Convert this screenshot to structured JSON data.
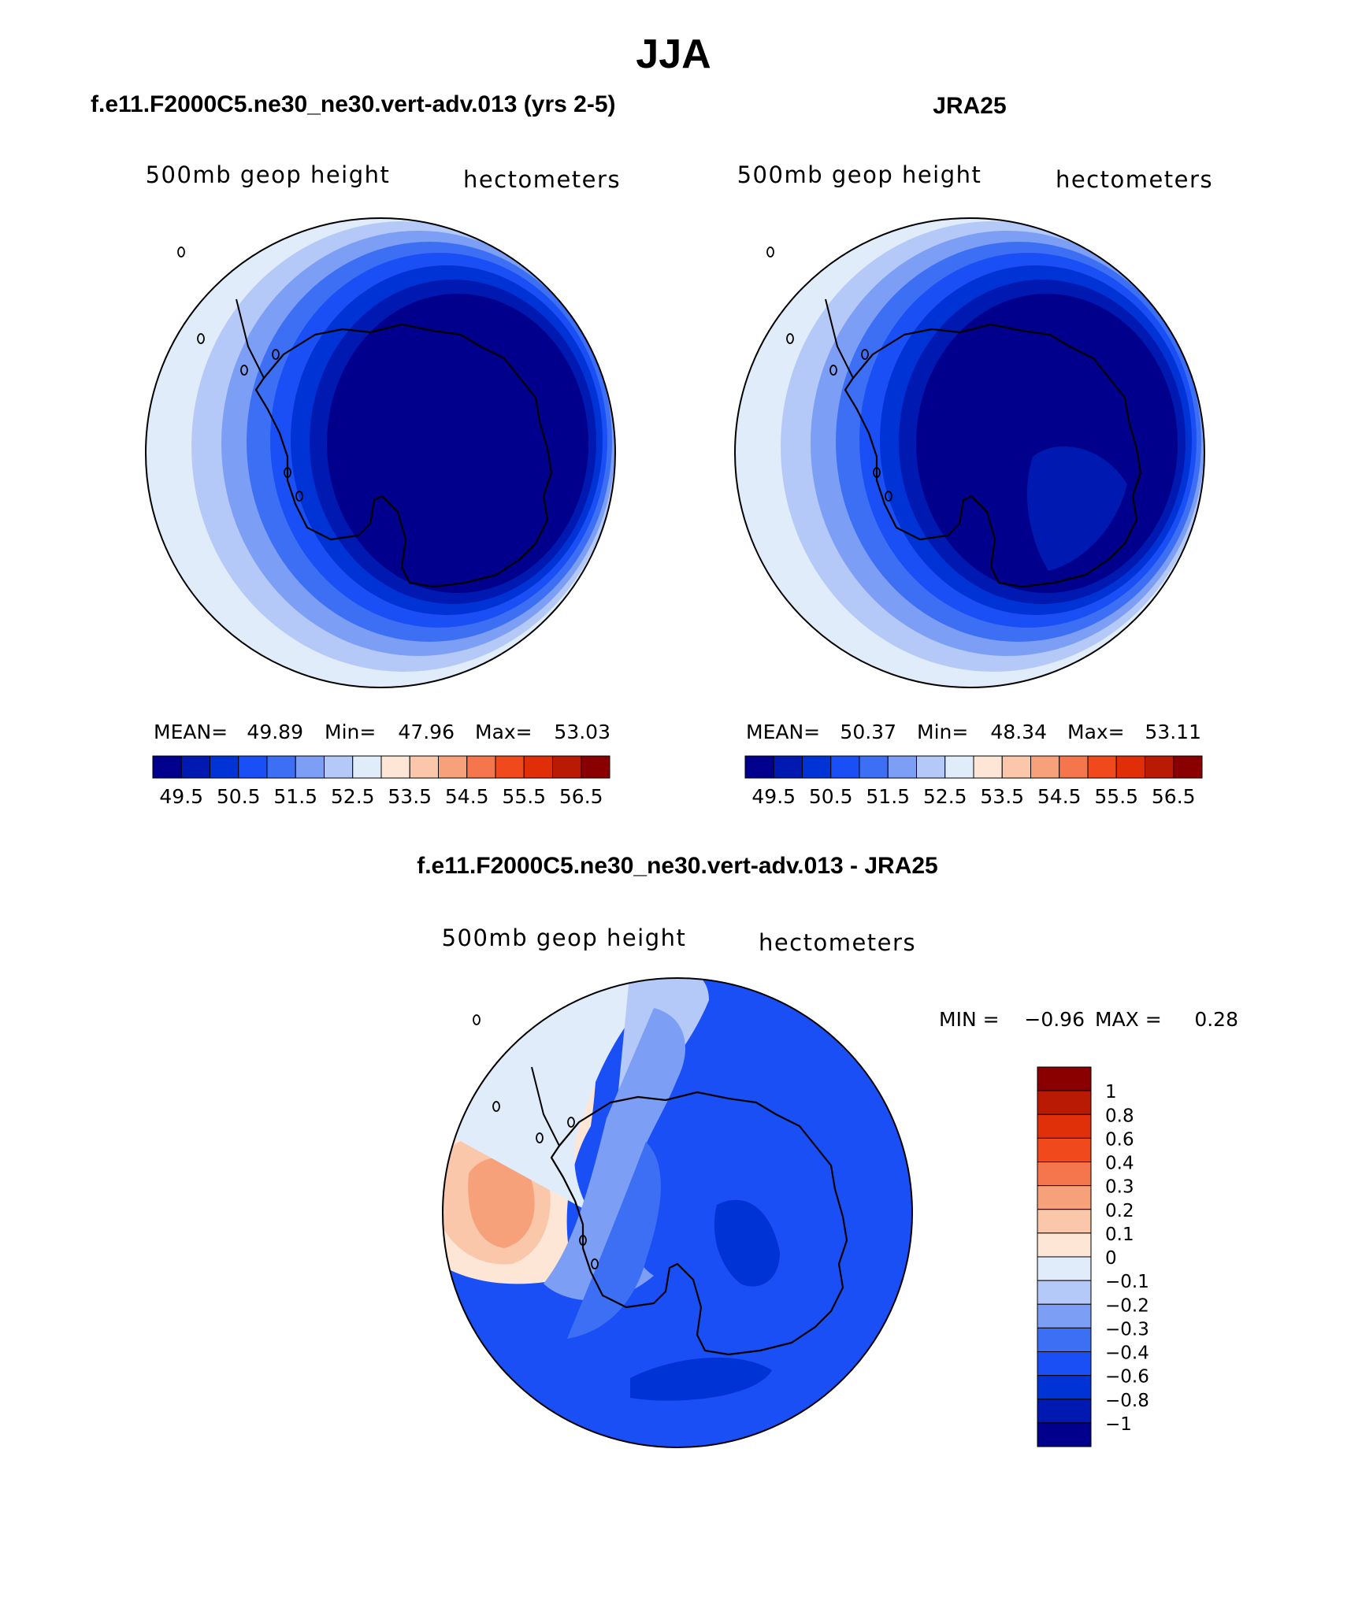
{
  "figure": {
    "title": "JJA",
    "left_title": "f.e11.F2000C5.ne30_ne30.vert-adv.013 (yrs 2-5)",
    "right_title": "JRA25",
    "diff_title": "f.e11.F2000C5.ne30_ne30.vert-adv.013 - JRA25"
  },
  "chart_data": [
    {
      "type": "heatmap",
      "projection": "south-polar-stereographic",
      "variable_label": "500mb geop height",
      "units_label": "hectometers",
      "stats": {
        "mean_label": "MEAN=",
        "mean": "49.89",
        "min_label": "Min=",
        "min": "47.96",
        "max_label": "Max=",
        "max": "53.03"
      },
      "colorbar_orientation": "horizontal",
      "colorbar_ticks": [
        "49.5",
        "50.5",
        "51.5",
        "52.5",
        "53.5",
        "54.5",
        "55.5",
        "56.5"
      ],
      "color_levels": [
        "#00008c",
        "#0019b0",
        "#0033d6",
        "#1a4ff5",
        "#3d6ff5",
        "#7c9ff5",
        "#b4c9f7",
        "#e0ecfa",
        "#fde6d6",
        "#fbc7aa",
        "#f7a17a",
        "#f5754c",
        "#f04a1c",
        "#e02e08",
        "#b81a04",
        "#8a0000"
      ],
      "rings": [
        {
          "color": "#e0ecfa"
        },
        {
          "color": "#b4c9f7"
        },
        {
          "color": "#7c9ff5"
        },
        {
          "color": "#3d6ff5"
        },
        {
          "color": "#1a4ff5"
        },
        {
          "color": "#0033d6"
        },
        {
          "color": "#0019b0"
        },
        {
          "color": "#00008c"
        }
      ]
    },
    {
      "type": "heatmap",
      "projection": "south-polar-stereographic",
      "variable_label": "500mb geop height",
      "units_label": "hectometers",
      "stats": {
        "mean_label": "MEAN=",
        "mean": "50.37",
        "min_label": "Min=",
        "min": "48.34",
        "max_label": "Max=",
        "max": "53.11"
      },
      "colorbar_orientation": "horizontal",
      "colorbar_ticks": [
        "49.5",
        "50.5",
        "51.5",
        "52.5",
        "53.5",
        "54.5",
        "55.5",
        "56.5"
      ],
      "color_levels": [
        "#00008c",
        "#0019b0",
        "#0033d6",
        "#1a4ff5",
        "#3d6ff5",
        "#7c9ff5",
        "#b4c9f7",
        "#e0ecfa",
        "#fde6d6",
        "#fbc7aa",
        "#f7a17a",
        "#f5754c",
        "#f04a1c",
        "#e02e08",
        "#b81a04",
        "#8a0000"
      ],
      "rings": [
        {
          "color": "#e0ecfa"
        },
        {
          "color": "#b4c9f7"
        },
        {
          "color": "#7c9ff5"
        },
        {
          "color": "#3d6ff5"
        },
        {
          "color": "#1a4ff5"
        },
        {
          "color": "#0033d6"
        },
        {
          "color": "#0019b0"
        },
        {
          "color": "#00008c"
        }
      ]
    },
    {
      "type": "heatmap",
      "projection": "south-polar-stereographic",
      "variable_label": "500mb geop height",
      "units_label": "hectometers",
      "stats": {
        "min_label": "MIN =",
        "min": "−0.96",
        "max_label": "MAX =",
        "max": "0.28"
      },
      "colorbar_orientation": "vertical",
      "colorbar_ticks": [
        "1",
        "0.8",
        "0.6",
        "0.4",
        "0.3",
        "0.2",
        "0.1",
        "0",
        "−0.1",
        "−0.2",
        "−0.3",
        "−0.4",
        "−0.6",
        "−0.8",
        "−1"
      ],
      "color_levels_top_to_bottom": [
        "#8a0000",
        "#b81a04",
        "#e0300a",
        "#f04a1c",
        "#f5754c",
        "#f7a17a",
        "#fbc7aa",
        "#fde6d6",
        "#e0ecfa",
        "#b4c9f7",
        "#7c9ff5",
        "#3d6ff5",
        "#1a4ff5",
        "#0033d6",
        "#0019b0",
        "#00008c"
      ],
      "base_color": "#1a4ff5",
      "blobs": [
        {
          "color": "#fde6d6",
          "region": "west"
        },
        {
          "color": "#fbc7aa",
          "region": "west"
        },
        {
          "color": "#f7a17a",
          "region": "west"
        },
        {
          "color": "#e0ecfa",
          "region": "northwest"
        },
        {
          "color": "#b4c9f7",
          "region": "north"
        },
        {
          "color": "#7c9ff5",
          "region": "north"
        },
        {
          "color": "#3d6ff5",
          "region": "center-west"
        },
        {
          "color": "#0033d6",
          "region": "east"
        },
        {
          "color": "#0033d6",
          "region": "south"
        }
      ]
    }
  ]
}
